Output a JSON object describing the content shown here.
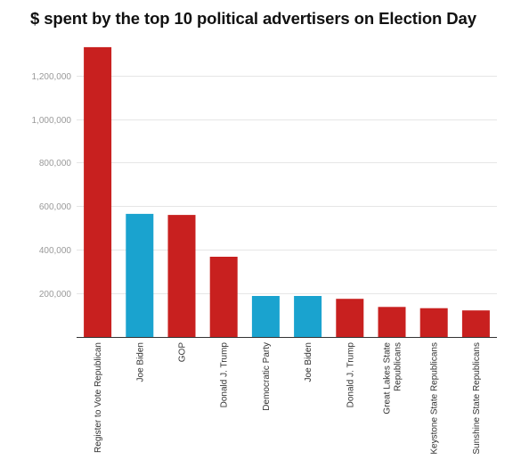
{
  "chart_data": {
    "type": "bar",
    "title": "$ spent by the top 10 political advertisers on Election Day",
    "xlabel": "",
    "ylabel": "",
    "ylim": [
      0,
      1350000
    ],
    "yticks": [
      200000,
      400000,
      600000,
      800000,
      1000000,
      1200000
    ],
    "ytick_labels": [
      "200,000",
      "400,000",
      "600,000",
      "800,000",
      "1,000,000",
      "1,200,000"
    ],
    "grid": true,
    "legend": "none",
    "categories": [
      [
        "Register to Vote Republican"
      ],
      [
        "Joe Biden"
      ],
      [
        "GOP"
      ],
      [
        "Donald J. Trump"
      ],
      [
        "Democratic Party"
      ],
      [
        "Joe Biden"
      ],
      [
        "Donald J. Trump"
      ],
      [
        "Great Lakes State",
        "Republicans"
      ],
      [
        "Keystone State Republicans"
      ],
      [
        "Sunshine State Republicans"
      ]
    ],
    "values": [
      1330000,
      565000,
      560000,
      368000,
      188000,
      188000,
      175000,
      138000,
      132000,
      122000
    ],
    "party": [
      "R",
      "D",
      "R",
      "R",
      "D",
      "D",
      "R",
      "R",
      "R",
      "R"
    ],
    "colors": {
      "R": "#c8201f",
      "D": "#1aa3cf"
    }
  }
}
